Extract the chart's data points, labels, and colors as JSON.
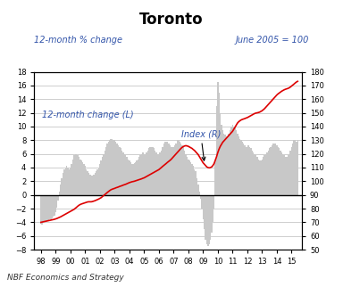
{
  "title": "Toronto",
  "left_label": "12-month % change",
  "right_label": "June 2005 = 100",
  "footer": "NBF Economics and Strategy",
  "bar_label": "12-month change (L)",
  "line_label": "Index (R)",
  "left_ylim": [
    -8,
    18
  ],
  "right_ylim": [
    50,
    180
  ],
  "left_yticks": [
    -8,
    -6,
    -4,
    -2,
    0,
    2,
    4,
    6,
    8,
    10,
    12,
    14,
    16,
    18
  ],
  "right_yticks": [
    50,
    60,
    70,
    80,
    90,
    100,
    110,
    120,
    130,
    140,
    150,
    160,
    170,
    180
  ],
  "xtick_labels": [
    "98",
    "99",
    "00",
    "01",
    "02",
    "03",
    "04",
    "05",
    "06",
    "07",
    "08",
    "09",
    "10",
    "11",
    "12",
    "13",
    "14",
    "15"
  ],
  "bar_color": "#c8c8c8",
  "line_color": "#dd0000",
  "background_color": "#ffffff",
  "label_color": "#3355aa",
  "bar_data_x": [
    1998.0,
    1998.083,
    1998.167,
    1998.25,
    1998.333,
    1998.417,
    1998.5,
    1998.583,
    1998.667,
    1998.75,
    1998.833,
    1998.917,
    1999.0,
    1999.083,
    1999.167,
    1999.25,
    1999.333,
    1999.417,
    1999.5,
    1999.583,
    1999.667,
    1999.75,
    1999.833,
    1999.917,
    2000.0,
    2000.083,
    2000.167,
    2000.25,
    2000.333,
    2000.417,
    2000.5,
    2000.583,
    2000.667,
    2000.75,
    2000.833,
    2000.917,
    2001.0,
    2001.083,
    2001.167,
    2001.25,
    2001.333,
    2001.417,
    2001.5,
    2001.583,
    2001.667,
    2001.75,
    2001.833,
    2001.917,
    2002.0,
    2002.083,
    2002.167,
    2002.25,
    2002.333,
    2002.417,
    2002.5,
    2002.583,
    2002.667,
    2002.75,
    2002.833,
    2002.917,
    2003.0,
    2003.083,
    2003.167,
    2003.25,
    2003.333,
    2003.417,
    2003.5,
    2003.583,
    2003.667,
    2003.75,
    2003.833,
    2003.917,
    2004.0,
    2004.083,
    2004.167,
    2004.25,
    2004.333,
    2004.417,
    2004.5,
    2004.583,
    2004.667,
    2004.75,
    2004.833,
    2004.917,
    2005.0,
    2005.083,
    2005.167,
    2005.25,
    2005.333,
    2005.417,
    2005.5,
    2005.583,
    2005.667,
    2005.75,
    2005.833,
    2005.917,
    2006.0,
    2006.083,
    2006.167,
    2006.25,
    2006.333,
    2006.417,
    2006.5,
    2006.583,
    2006.667,
    2006.75,
    2006.833,
    2006.917,
    2007.0,
    2007.083,
    2007.167,
    2007.25,
    2007.333,
    2007.417,
    2007.5,
    2007.583,
    2007.667,
    2007.75,
    2007.833,
    2007.917,
    2008.0,
    2008.083,
    2008.167,
    2008.25,
    2008.333,
    2008.417,
    2008.5,
    2008.583,
    2008.667,
    2008.75,
    2008.833,
    2008.917,
    2009.0,
    2009.083,
    2009.167,
    2009.25,
    2009.333,
    2009.417,
    2009.5,
    2009.583,
    2009.667,
    2009.75,
    2009.833,
    2009.917,
    2010.0,
    2010.083,
    2010.167,
    2010.25,
    2010.333,
    2010.417,
    2010.5,
    2010.583,
    2010.667,
    2010.75,
    2010.833,
    2010.917,
    2011.0,
    2011.083,
    2011.167,
    2011.25,
    2011.333,
    2011.417,
    2011.5,
    2011.583,
    2011.667,
    2011.75,
    2011.833,
    2011.917,
    2012.0,
    2012.083,
    2012.167,
    2012.25,
    2012.333,
    2012.417,
    2012.5,
    2012.583,
    2012.667,
    2012.75,
    2012.833,
    2012.917,
    2013.0,
    2013.083,
    2013.167,
    2013.25,
    2013.333,
    2013.417,
    2013.5,
    2013.583,
    2013.667,
    2013.75,
    2013.833,
    2013.917,
    2014.0,
    2014.083,
    2014.167,
    2014.25,
    2014.333,
    2014.417,
    2014.5,
    2014.583,
    2014.667,
    2014.75,
    2014.833,
    2014.917,
    2015.0,
    2015.083,
    2015.167,
    2015.25,
    2015.333,
    2015.417
  ],
  "bar_data_y": [
    -4.2,
    -4.3,
    -4.1,
    -4.0,
    -3.9,
    -3.8,
    -3.7,
    -3.6,
    -3.5,
    -3.4,
    -3.2,
    -3.0,
    -2.5,
    -1.8,
    -0.8,
    0.5,
    1.5,
    2.5,
    3.2,
    3.8,
    4.0,
    4.2,
    4.0,
    3.8,
    4.0,
    4.5,
    5.2,
    5.8,
    6.0,
    6.0,
    5.8,
    5.5,
    5.2,
    5.0,
    4.8,
    4.5,
    4.2,
    3.8,
    3.5,
    3.2,
    3.0,
    2.8,
    2.8,
    3.0,
    3.2,
    3.5,
    3.8,
    4.0,
    4.5,
    5.0,
    5.5,
    6.0,
    6.5,
    7.0,
    7.5,
    7.8,
    8.0,
    8.2,
    8.2,
    8.0,
    8.0,
    7.8,
    7.5,
    7.2,
    7.0,
    6.8,
    6.5,
    6.2,
    6.0,
    5.8,
    5.5,
    5.2,
    5.0,
    4.8,
    4.5,
    4.5,
    4.6,
    4.8,
    5.0,
    5.2,
    5.5,
    5.8,
    6.0,
    6.2,
    6.0,
    6.0,
    6.2,
    6.5,
    6.8,
    7.0,
    7.0,
    7.0,
    6.8,
    6.5,
    6.2,
    6.0,
    6.0,
    6.2,
    6.5,
    7.0,
    7.5,
    7.8,
    7.8,
    7.8,
    7.5,
    7.2,
    7.0,
    7.0,
    7.0,
    7.2,
    7.5,
    8.0,
    8.0,
    7.8,
    7.5,
    7.2,
    7.0,
    6.5,
    6.0,
    5.5,
    5.2,
    5.0,
    4.8,
    4.5,
    4.2,
    3.8,
    3.5,
    2.5,
    1.5,
    0.5,
    -0.5,
    -2.0,
    -3.5,
    -5.0,
    -6.5,
    -7.2,
    -7.5,
    -7.2,
    -6.5,
    -5.5,
    -4.0,
    -2.0,
    5.0,
    13.0,
    16.5,
    15.0,
    12.0,
    10.2,
    9.5,
    9.0,
    8.8,
    8.5,
    8.5,
    9.0,
    9.5,
    10.0,
    10.2,
    10.0,
    9.8,
    9.5,
    9.0,
    8.5,
    8.2,
    8.0,
    7.8,
    7.5,
    7.2,
    7.0,
    7.0,
    7.2,
    7.0,
    6.8,
    6.5,
    6.2,
    6.0,
    5.8,
    5.5,
    5.2,
    5.0,
    5.0,
    5.2,
    5.5,
    5.8,
    6.0,
    6.2,
    6.5,
    6.8,
    7.0,
    7.2,
    7.5,
    7.5,
    7.5,
    7.2,
    7.0,
    6.8,
    6.5,
    6.2,
    6.0,
    5.8,
    5.5,
    5.5,
    5.8,
    6.0,
    6.5,
    7.0,
    7.5,
    8.0,
    8.0,
    7.8,
    8.0
  ],
  "line_data_x": [
    1998.0,
    1998.083,
    1998.167,
    1998.25,
    1998.333,
    1998.417,
    1998.5,
    1998.583,
    1998.667,
    1998.75,
    1998.833,
    1998.917,
    1999.0,
    1999.083,
    1999.167,
    1999.25,
    1999.333,
    1999.417,
    1999.5,
    1999.583,
    1999.667,
    1999.75,
    1999.833,
    1999.917,
    2000.0,
    2000.083,
    2000.167,
    2000.25,
    2000.333,
    2000.417,
    2000.5,
    2000.583,
    2000.667,
    2000.75,
    2000.833,
    2000.917,
    2001.0,
    2001.083,
    2001.167,
    2001.25,
    2001.333,
    2001.417,
    2001.5,
    2001.583,
    2001.667,
    2001.75,
    2001.833,
    2001.917,
    2002.0,
    2002.083,
    2002.167,
    2002.25,
    2002.333,
    2002.417,
    2002.5,
    2002.583,
    2002.667,
    2002.75,
    2002.833,
    2002.917,
    2003.0,
    2003.083,
    2003.167,
    2003.25,
    2003.333,
    2003.417,
    2003.5,
    2003.583,
    2003.667,
    2003.75,
    2003.833,
    2003.917,
    2004.0,
    2004.083,
    2004.167,
    2004.25,
    2004.333,
    2004.417,
    2004.5,
    2004.583,
    2004.667,
    2004.75,
    2004.833,
    2004.917,
    2005.0,
    2005.083,
    2005.167,
    2005.25,
    2005.333,
    2005.417,
    2005.5,
    2005.583,
    2005.667,
    2005.75,
    2005.833,
    2005.917,
    2006.0,
    2006.083,
    2006.167,
    2006.25,
    2006.333,
    2006.417,
    2006.5,
    2006.583,
    2006.667,
    2006.75,
    2006.833,
    2006.917,
    2007.0,
    2007.083,
    2007.167,
    2007.25,
    2007.333,
    2007.417,
    2007.5,
    2007.583,
    2007.667,
    2007.75,
    2007.833,
    2007.917,
    2008.0,
    2008.083,
    2008.167,
    2008.25,
    2008.333,
    2008.417,
    2008.5,
    2008.583,
    2008.667,
    2008.75,
    2008.833,
    2008.917,
    2009.0,
    2009.083,
    2009.167,
    2009.25,
    2009.333,
    2009.417,
    2009.5,
    2009.583,
    2009.667,
    2009.75,
    2009.833,
    2009.917,
    2010.0,
    2010.083,
    2010.167,
    2010.25,
    2010.333,
    2010.417,
    2010.5,
    2010.583,
    2010.667,
    2010.75,
    2010.833,
    2010.917,
    2011.0,
    2011.083,
    2011.167,
    2011.25,
    2011.333,
    2011.417,
    2011.5,
    2011.583,
    2011.667,
    2011.75,
    2011.833,
    2011.917,
    2012.0,
    2012.083,
    2012.167,
    2012.25,
    2012.333,
    2012.417,
    2012.5,
    2012.583,
    2012.667,
    2012.75,
    2012.833,
    2012.917,
    2013.0,
    2013.083,
    2013.167,
    2013.25,
    2013.333,
    2013.417,
    2013.5,
    2013.583,
    2013.667,
    2013.75,
    2013.833,
    2013.917,
    2014.0,
    2014.083,
    2014.167,
    2014.25,
    2014.333,
    2014.417,
    2014.5,
    2014.583,
    2014.667,
    2014.75,
    2014.833,
    2014.917,
    2015.0,
    2015.083,
    2015.167,
    2015.25,
    2015.333,
    2015.417
  ],
  "line_data_y": [
    70.0,
    70.2,
    70.4,
    70.6,
    70.8,
    71.0,
    71.2,
    71.4,
    71.6,
    71.8,
    72.0,
    72.2,
    72.5,
    72.8,
    73.2,
    73.6,
    74.0,
    74.5,
    75.0,
    75.5,
    76.0,
    76.5,
    77.0,
    77.5,
    78.0,
    78.5,
    79.0,
    79.5,
    80.2,
    81.0,
    81.8,
    82.5,
    83.0,
    83.4,
    83.7,
    84.0,
    84.3,
    84.6,
    84.9,
    85.0,
    85.0,
    85.0,
    85.2,
    85.5,
    85.8,
    86.2,
    86.6,
    87.0,
    87.5,
    88.0,
    88.8,
    89.5,
    90.2,
    91.0,
    91.8,
    92.5,
    93.2,
    93.8,
    94.2,
    94.5,
    94.8,
    95.2,
    95.5,
    95.8,
    96.2,
    96.5,
    96.8,
    97.2,
    97.5,
    97.8,
    98.2,
    98.6,
    99.0,
    99.3,
    99.6,
    99.8,
    100.0,
    100.3,
    100.6,
    100.9,
    101.2,
    101.5,
    101.8,
    102.2,
    102.5,
    103.0,
    103.5,
    104.0,
    104.5,
    105.0,
    105.5,
    106.0,
    106.5,
    107.0,
    107.5,
    108.0,
    108.5,
    109.2,
    110.0,
    110.8,
    111.5,
    112.2,
    113.0,
    113.8,
    114.5,
    115.2,
    116.0,
    117.0,
    118.0,
    119.0,
    120.0,
    121.0,
    122.0,
    123.0,
    124.0,
    124.8,
    125.4,
    125.8,
    126.0,
    125.8,
    125.5,
    125.0,
    124.5,
    124.0,
    123.2,
    122.5,
    121.5,
    120.5,
    119.5,
    118.0,
    116.5,
    115.0,
    113.5,
    112.5,
    111.5,
    110.5,
    110.0,
    109.8,
    110.0,
    110.5,
    111.5,
    113.0,
    115.5,
    118.0,
    121.0,
    123.5,
    125.5,
    127.0,
    128.5,
    129.5,
    130.5,
    131.5,
    132.5,
    133.5,
    134.5,
    135.5,
    136.5,
    138.0,
    139.5,
    141.0,
    142.5,
    143.5,
    144.2,
    144.8,
    145.2,
    145.5,
    145.8,
    146.2,
    146.5,
    147.0,
    147.5,
    148.0,
    148.5,
    149.0,
    149.5,
    149.8,
    150.0,
    150.2,
    150.5,
    151.0,
    151.5,
    152.2,
    153.0,
    154.0,
    155.0,
    156.0,
    157.0,
    158.0,
    159.0,
    160.0,
    161.0,
    162.0,
    163.0,
    163.8,
    164.5,
    165.2,
    165.8,
    166.3,
    166.8,
    167.2,
    167.5,
    167.8,
    168.2,
    168.8,
    169.5,
    170.2,
    171.0,
    171.8,
    172.5,
    173.0
  ]
}
